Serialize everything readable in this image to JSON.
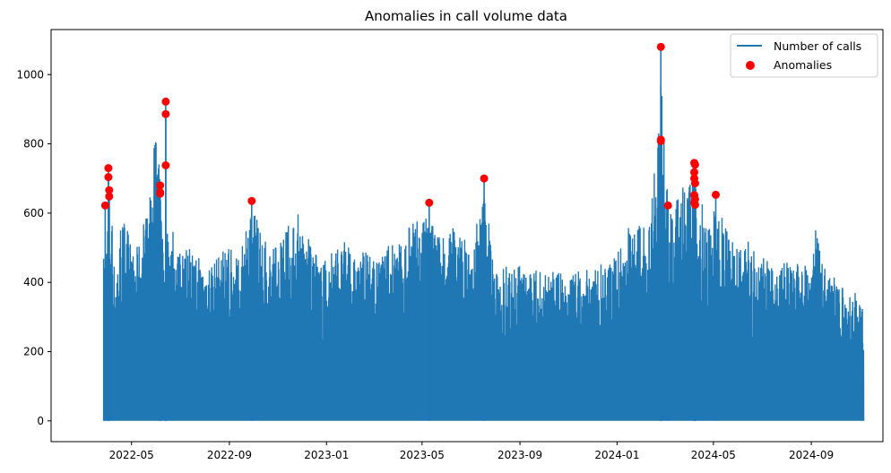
{
  "chart_data": {
    "type": "line",
    "title": "Anomalies in call volume data",
    "xlabel": "",
    "ylabel": "",
    "x_range": [
      "2022-01-20",
      "2024-11-30"
    ],
    "ylim": [
      -60,
      1130
    ],
    "x_ticks": [
      "2022-05",
      "2022-09",
      "2023-01",
      "2023-05",
      "2023-09",
      "2024-01",
      "2024-05",
      "2024-09"
    ],
    "x_tick_dates": [
      "2022-05-01",
      "2022-09-01",
      "2023-01-01",
      "2023-05-01",
      "2023-09-01",
      "2024-01-01",
      "2024-05-01",
      "2024-09-01"
    ],
    "y_ticks": [
      0,
      200,
      400,
      600,
      800,
      1000
    ],
    "series": [
      {
        "name": "Number of calls",
        "color": "#1f77b4",
        "kind": "line",
        "date_range": [
          "2022-03-27",
          "2024-11-06"
        ],
        "baseline": 0,
        "envelope": [
          [
            "2022-03-27",
            470
          ],
          [
            "2022-04-01",
            620
          ],
          [
            "2022-04-03",
            730
          ],
          [
            "2022-04-10",
            450
          ],
          [
            "2022-04-20",
            610
          ],
          [
            "2022-05-01",
            500
          ],
          [
            "2022-05-15",
            560
          ],
          [
            "2022-05-25",
            680
          ],
          [
            "2022-06-01",
            920
          ],
          [
            "2022-06-10",
            560
          ],
          [
            "2022-06-20",
            570
          ],
          [
            "2022-07-01",
            500
          ],
          [
            "2022-07-15",
            500
          ],
          [
            "2022-08-01",
            480
          ],
          [
            "2022-08-15",
            500
          ],
          [
            "2022-09-01",
            500
          ],
          [
            "2022-09-15",
            490
          ],
          [
            "2022-09-29",
            635
          ],
          [
            "2022-10-15",
            520
          ],
          [
            "2022-11-01",
            510
          ],
          [
            "2022-11-25",
            615
          ],
          [
            "2022-12-15",
            500
          ],
          [
            "2023-01-01",
            460
          ],
          [
            "2023-01-15",
            540
          ],
          [
            "2023-02-01",
            500
          ],
          [
            "2023-03-01",
            480
          ],
          [
            "2023-04-01",
            530
          ],
          [
            "2023-05-10",
            630
          ],
          [
            "2023-06-01",
            520
          ],
          [
            "2023-06-15",
            595
          ],
          [
            "2023-07-01",
            480
          ],
          [
            "2023-07-18",
            700
          ],
          [
            "2023-08-01",
            450
          ],
          [
            "2023-09-01",
            460
          ],
          [
            "2023-10-01",
            430
          ],
          [
            "2023-11-01",
            430
          ],
          [
            "2023-12-01",
            440
          ],
          [
            "2024-01-01",
            480
          ],
          [
            "2024-01-20",
            600
          ],
          [
            "2024-02-10",
            580
          ],
          [
            "2024-02-25",
            1080
          ],
          [
            "2024-03-05",
            620
          ],
          [
            "2024-03-20",
            660
          ],
          [
            "2024-04-05",
            750
          ],
          [
            "2024-04-20",
            600
          ],
          [
            "2024-05-05",
            655
          ],
          [
            "2024-05-20",
            560
          ],
          [
            "2024-06-01",
            500
          ],
          [
            "2024-06-15",
            520
          ],
          [
            "2024-07-01",
            480
          ],
          [
            "2024-07-15",
            450
          ],
          [
            "2024-08-01",
            460
          ],
          [
            "2024-08-15",
            460
          ],
          [
            "2024-09-01",
            440
          ],
          [
            "2024-09-05",
            590
          ],
          [
            "2024-09-20",
            450
          ],
          [
            "2024-10-01",
            420
          ],
          [
            "2024-10-15",
            370
          ],
          [
            "2024-11-06",
            370
          ]
        ]
      },
      {
        "name": "Anomalies",
        "color": "#ff0000",
        "kind": "scatter",
        "points": [
          [
            "2022-03-29",
            622
          ],
          [
            "2022-04-02",
            730
          ],
          [
            "2022-04-02",
            704
          ],
          [
            "2022-04-03",
            666
          ],
          [
            "2022-04-03",
            648
          ],
          [
            "2022-06-06",
            680
          ],
          [
            "2022-06-06",
            660
          ],
          [
            "2022-06-06",
            656
          ],
          [
            "2022-06-13",
            922
          ],
          [
            "2022-06-13",
            886
          ],
          [
            "2022-06-13",
            738
          ],
          [
            "2022-09-29",
            635
          ],
          [
            "2023-05-10",
            630
          ],
          [
            "2023-07-18",
            700
          ],
          [
            "2024-02-25",
            1080
          ],
          [
            "2024-02-25",
            812
          ],
          [
            "2024-02-25",
            808
          ],
          [
            "2024-03-05",
            622
          ],
          [
            "2024-04-07",
            745
          ],
          [
            "2024-04-08",
            740
          ],
          [
            "2024-04-07",
            718
          ],
          [
            "2024-04-07",
            700
          ],
          [
            "2024-04-08",
            686
          ],
          [
            "2024-04-07",
            652
          ],
          [
            "2024-04-08",
            640
          ],
          [
            "2024-04-07",
            630
          ],
          [
            "2024-04-08",
            624
          ],
          [
            "2024-05-04",
            653
          ]
        ]
      }
    ],
    "legend": {
      "placement": "top-right",
      "entries": [
        "Number of calls",
        "Anomalies"
      ]
    }
  }
}
